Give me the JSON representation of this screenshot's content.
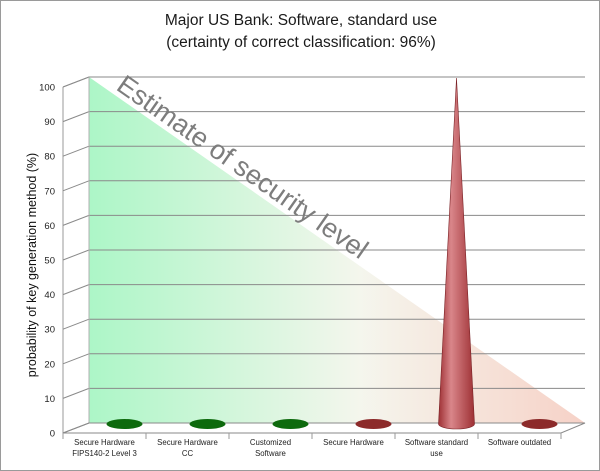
{
  "chart_data": {
    "type": "bar",
    "title": "Major US Bank: Software, standard use",
    "subtitle": "(certainty of correct classification: 96%)",
    "xlabel": "",
    "ylabel": "probability of key generation method (%)",
    "ylim": [
      0,
      100
    ],
    "yticks": [
      0,
      10,
      20,
      30,
      40,
      50,
      60,
      70,
      80,
      90,
      100
    ],
    "grid": true,
    "categories": [
      [
        "Secure Hardware",
        "FIPS140-2 Level 3"
      ],
      [
        "Secure Hardware",
        "CC"
      ],
      [
        "Customized",
        "Software"
      ],
      [
        "Secure Hardware"
      ],
      [
        "Software standard",
        "use"
      ],
      [
        "Software outdated"
      ]
    ],
    "values": [
      0,
      0,
      0,
      0,
      100,
      0
    ],
    "annotation": "Estimate of security level",
    "colors": {
      "secure": "#0d6a0d",
      "insecure": "#8c2a2a",
      "cone_light": "#d9868a",
      "cone_dark": "#9e3034",
      "gradient_left": "#a8f5c4",
      "gradient_right": "#f6cfc4",
      "grid": "#8a8a8a"
    },
    "bar_color_keys": [
      "secure",
      "secure",
      "secure",
      "insecure",
      "insecure",
      "insecure"
    ]
  }
}
